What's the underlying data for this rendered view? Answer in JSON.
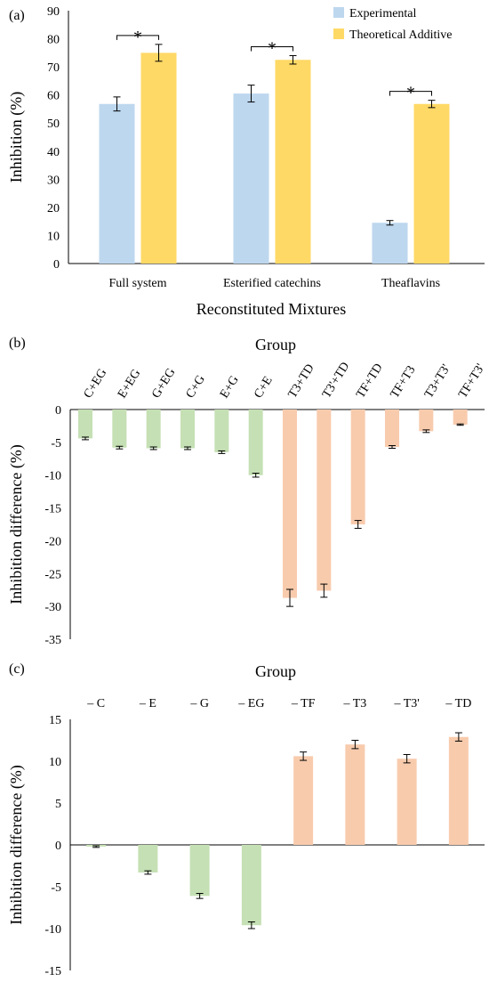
{
  "chart_data": [
    {
      "type": "bar",
      "panel_label": "(a)",
      "xlabel": "Reconstituted Mixtures",
      "ylabel": "Inhibition (%)",
      "ylim": [
        0,
        90
      ],
      "yticks": [
        0,
        10,
        20,
        30,
        40,
        50,
        60,
        70,
        80,
        90
      ],
      "grid": false,
      "legend_position": "top-right",
      "categories": [
        "Full system",
        "Esterified catechins",
        "Theaflavins"
      ],
      "series": [
        {
          "name": "Experimental",
          "color": "#bdd7ee",
          "values": [
            56.8,
            60.5,
            14.5
          ],
          "errors": [
            2.5,
            3.0,
            0.8
          ]
        },
        {
          "name": "Theoretical Additive",
          "color": "#ffd966",
          "values": [
            75.0,
            72.5,
            56.8
          ],
          "errors": [
            3.0,
            1.5,
            1.3
          ]
        }
      ],
      "annotations": [
        "*",
        "*",
        "*"
      ]
    },
    {
      "type": "bar",
      "panel_label": "(b)",
      "title": "Group",
      "ylabel": "Inhibition difference (%)",
      "ylim": [
        -35,
        0
      ],
      "yticks": [
        0,
        -5,
        -10,
        -15,
        -20,
        -25,
        -30,
        -35
      ],
      "grid": false,
      "categories": [
        "C+EG",
        "E+EG",
        "G+EG",
        "C+G",
        "E+G",
        "C+E",
        "T3+TD",
        "T3'+TD",
        "TF+TD",
        "TF+T3",
        "T3+T3'",
        "TF+T3'"
      ],
      "values": [
        -4.4,
        -5.8,
        -5.9,
        -5.9,
        -6.5,
        -10.0,
        -28.7,
        -27.6,
        -17.5,
        -5.7,
        -3.3,
        -2.3
      ],
      "errors": [
        0.2,
        0.2,
        0.2,
        0.2,
        0.2,
        0.3,
        1.3,
        1.0,
        0.6,
        0.2,
        0.2,
        0.1
      ],
      "colors": [
        "#c5e0b4",
        "#c5e0b4",
        "#c5e0b4",
        "#c5e0b4",
        "#c5e0b4",
        "#c5e0b4",
        "#f8cbad",
        "#f8cbad",
        "#f8cbad",
        "#f8cbad",
        "#f8cbad",
        "#f8cbad"
      ]
    },
    {
      "type": "bar",
      "panel_label": "(c)",
      "title": "Group",
      "ylabel": "Inhibition difference (%)",
      "ylim": [
        -15,
        15
      ],
      "yticks": [
        15,
        10,
        5,
        0,
        -5,
        -10,
        -15
      ],
      "grid": false,
      "categories": [
        "– C",
        "– E",
        "– G",
        "– EG",
        "– TF",
        "– T3",
        "– T3'",
        "– TD"
      ],
      "values": [
        -0.2,
        -3.3,
        -6.1,
        -9.6,
        10.6,
        12.0,
        10.3,
        12.9
      ],
      "errors": [
        0.1,
        0.2,
        0.3,
        0.4,
        0.5,
        0.5,
        0.5,
        0.5
      ],
      "colors": [
        "#c5e0b4",
        "#c5e0b4",
        "#c5e0b4",
        "#c5e0b4",
        "#f8cbad",
        "#f8cbad",
        "#f8cbad",
        "#f8cbad"
      ]
    }
  ]
}
